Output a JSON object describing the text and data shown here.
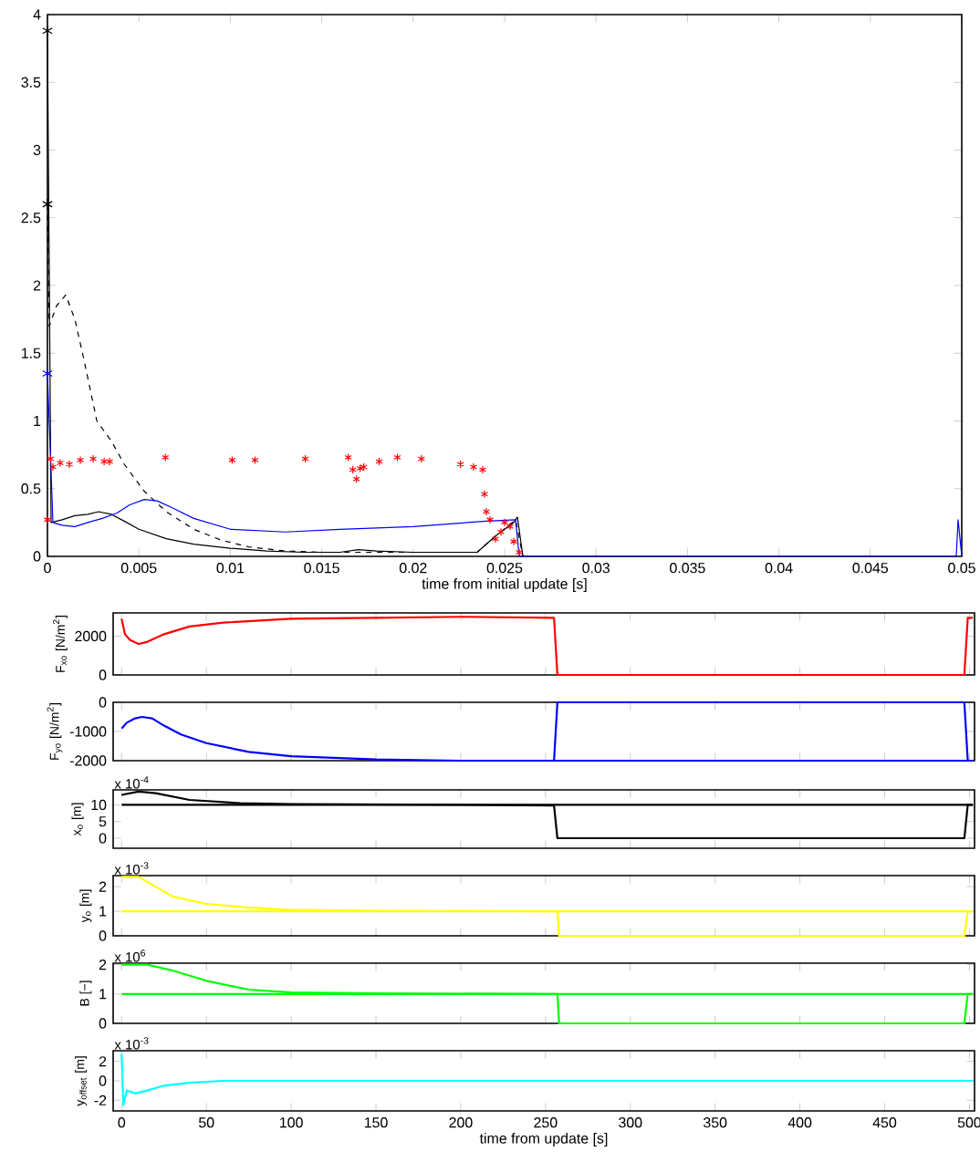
{
  "chart_data": [
    {
      "type": "line",
      "xlabel": "time from initial update [s]",
      "xlim": [
        0,
        0.05
      ],
      "xticks": [
        0,
        0.005,
        0.01,
        0.015,
        0.02,
        0.025,
        0.03,
        0.035,
        0.04,
        0.045,
        0.05
      ],
      "ylim": [
        0,
        4
      ],
      "yticks": [
        0,
        0.5,
        1,
        1.5,
        2,
        2.5,
        3,
        3.5,
        4
      ],
      "series": [
        {
          "color": "#000000",
          "line_style": "dashed",
          "x": [
            0,
            0.0001,
            0.0005,
            0.001,
            0.0015,
            0.002,
            0.0027,
            0.0035,
            0.0042,
            0.0053,
            0.0065,
            0.008,
            0.0095,
            0.011,
            0.013,
            0.015,
            0.018,
            0.021,
            0.0235,
            0.0245,
            0.0256,
            0.026
          ],
          "values": [
            2.6,
            1.7,
            1.85,
            1.93,
            1.75,
            1.45,
            1.0,
            0.85,
            0.68,
            0.48,
            0.33,
            0.2,
            0.12,
            0.07,
            0.04,
            0.03,
            0.03,
            0.03,
            0.03,
            0.15,
            0.27,
            0
          ]
        },
        {
          "color": "#000000",
          "line_style": "solid",
          "x": [
            0,
            0.0002,
            0.0008,
            0.0015,
            0.0022,
            0.0028,
            0.0035,
            0.0042,
            0.005,
            0.0065,
            0.008,
            0.01,
            0.012,
            0.014,
            0.016,
            0.017,
            0.018,
            0.02,
            0.022,
            0.0235,
            0.0245,
            0.0255,
            0.0257,
            0.026
          ],
          "values": [
            3.88,
            0.25,
            0.27,
            0.3,
            0.31,
            0.33,
            0.31,
            0.26,
            0.2,
            0.13,
            0.09,
            0.06,
            0.04,
            0.03,
            0.03,
            0.05,
            0.04,
            0.03,
            0.03,
            0.03,
            0.15,
            0.25,
            0.29,
            0
          ]
        },
        {
          "color": "#0000ff",
          "line_style": "solid",
          "x": [
            0,
            0.0003,
            0.0008,
            0.0015,
            0.0022,
            0.003,
            0.0038,
            0.0045,
            0.0053,
            0.006,
            0.0068,
            0.008,
            0.01,
            0.013,
            0.016,
            0.02,
            0.024,
            0.0256,
            0.0258,
            0.0497,
            0.0498,
            0.05
          ],
          "values": [
            1.35,
            0.25,
            0.23,
            0.22,
            0.25,
            0.28,
            0.32,
            0.38,
            0.42,
            0.41,
            0.36,
            0.28,
            0.2,
            0.18,
            0.2,
            0.22,
            0.26,
            0.27,
            0,
            0,
            0.27,
            0
          ]
        },
        {
          "type": "scatter",
          "color": "#ff0000",
          "marker": "cross",
          "x": [
            0,
            0.00017,
            0.0003,
            0.0007,
            0.0012,
            0.0018,
            0.0025,
            0.0031,
            0.0034,
            0.00645,
            0.0101,
            0.01135,
            0.0141,
            0.01645,
            0.0167,
            0.0169,
            0.0171,
            0.0173,
            0.01814,
            0.01914,
            0.02045,
            0.02259,
            0.0233,
            0.0238,
            0.0239,
            0.024,
            0.0242,
            0.0245,
            0.0248,
            0.025,
            0.0253,
            0.0255,
            0.0258
          ],
          "values": [
            0.27,
            0.72,
            0.66,
            0.69,
            0.68,
            0.71,
            0.72,
            0.7,
            0.7,
            0.73,
            0.71,
            0.71,
            0.72,
            0.73,
            0.64,
            0.57,
            0.65,
            0.66,
            0.7,
            0.73,
            0.72,
            0.68,
            0.66,
            0.64,
            0.46,
            0.33,
            0.27,
            0.13,
            0.18,
            0.25,
            0.22,
            0.11,
            0.03
          ]
        },
        {
          "type": "scatter",
          "color": "#000000",
          "marker": "cross",
          "x": [
            0
          ],
          "values": [
            3.88
          ]
        },
        {
          "type": "scatter",
          "color": "#000000",
          "marker": "cross",
          "x": [
            0
          ],
          "values": [
            2.6
          ]
        },
        {
          "type": "scatter",
          "color": "#0000ff",
          "marker": "cross",
          "x": [
            0
          ],
          "values": [
            1.35
          ]
        }
      ]
    },
    {
      "type": "line",
      "ylabel": "F$_{xo}$ [N/m$^{2}$]",
      "tick_labels": "y",
      "xlim": [
        -5,
        503
      ],
      "xticks": [
        0,
        50,
        100,
        150,
        200,
        250,
        300,
        350,
        400,
        450,
        500
      ],
      "ylim": [
        0,
        3200
      ],
      "yticks": [
        0,
        2000
      ],
      "series": [
        {
          "color": "#ff0000",
          "x": [
            0,
            2,
            5,
            10,
            15,
            25,
            40,
            60,
            80,
            100,
            150,
            200,
            255,
            257,
            497,
            499,
            502
          ],
          "values": [
            2900,
            2100,
            1800,
            1600,
            1700,
            2100,
            2500,
            2700,
            2800,
            2900,
            2950,
            3000,
            2950,
            0,
            0,
            2950,
            2950
          ]
        }
      ]
    },
    {
      "type": "line",
      "ylabel": "F$_{yo}$ [N/m$^{2}$]",
      "tick_labels": "y",
      "xlim": [
        -5,
        503
      ],
      "xticks": [
        0,
        50,
        100,
        150,
        200,
        250,
        300,
        350,
        400,
        450,
        500
      ],
      "ylim": [
        -2000,
        0
      ],
      "yticks": [
        -2000,
        -1000,
        0
      ],
      "series": [
        {
          "color": "#0000ff",
          "x": [
            0,
            3,
            8,
            12,
            18,
            25,
            35,
            50,
            75,
            100,
            150,
            200,
            255,
            257,
            497,
            499,
            502
          ],
          "values": [
            -900,
            -700,
            -550,
            -500,
            -550,
            -800,
            -1100,
            -1400,
            -1700,
            -1850,
            -1960,
            -2000,
            -2000,
            0,
            0,
            -2000,
            -2000
          ]
        },
        {
          "color": "#0000ff",
          "x": [
            255,
            502
          ],
          "values": [
            -2000,
            -2000
          ]
        }
      ]
    },
    {
      "type": "line",
      "ylabel": "x$_{o}$ [m]",
      "tick_labels": "y",
      "annotations": [
        "x 10$^{-4}$"
      ],
      "xlim": [
        -5,
        503
      ],
      "xticks": [
        0,
        50,
        100,
        150,
        200,
        250,
        300,
        350,
        400,
        450,
        500
      ],
      "ylim": [
        -3,
        14.5
      ],
      "yticks": [
        0,
        5,
        10
      ],
      "series": [
        {
          "color": "#000000",
          "x": [
            0,
            10,
            20,
            40,
            70,
            100,
            200,
            255,
            257,
            497,
            499,
            502
          ],
          "values": [
            13,
            14,
            13.5,
            11.5,
            10.5,
            10.2,
            10,
            9.8,
            0,
            0,
            10,
            10
          ]
        },
        {
          "color": "#000000",
          "x": [
            0,
            502
          ],
          "values": [
            10,
            10
          ]
        }
      ]
    },
    {
      "type": "line",
      "ylabel": "y$_{o}$ [m]",
      "tick_labels": "y",
      "annotations": [
        "x 10$^{-3}$"
      ],
      "xlim": [
        -5,
        503
      ],
      "xticks": [
        0,
        50,
        100,
        150,
        200,
        250,
        300,
        350,
        400,
        450,
        500
      ],
      "ylim": [
        0,
        2.45
      ],
      "yticks": [
        0,
        1,
        2
      ],
      "series": [
        {
          "color": "#ffff00",
          "x": [
            0,
            10,
            20,
            30,
            50,
            75,
            100,
            150,
            257,
            258,
            497,
            499,
            502
          ],
          "values": [
            2.4,
            2.4,
            2.0,
            1.6,
            1.3,
            1.15,
            1.05,
            1.02,
            1.0,
            0,
            0,
            1,
            1
          ]
        },
        {
          "color": "#ffff00",
          "x": [
            0,
            502
          ],
          "values": [
            1,
            1
          ]
        }
      ]
    },
    {
      "type": "line",
      "ylabel": "B [−]",
      "tick_labels": "y",
      "annotations": [
        "x 10$^{6}$"
      ],
      "xlim": [
        -5,
        503
      ],
      "xticks": [
        0,
        50,
        100,
        150,
        200,
        250,
        300,
        350,
        400,
        450,
        500
      ],
      "ylim": [
        0,
        2.05
      ],
      "yticks": [
        0,
        1,
        2
      ],
      "series": [
        {
          "color": "#00ff00",
          "x": [
            0,
            15,
            30,
            50,
            75,
            100,
            150,
            257,
            258,
            497,
            499,
            502
          ],
          "values": [
            2,
            2,
            1.8,
            1.45,
            1.15,
            1.05,
            1.02,
            1.0,
            0,
            0,
            1,
            1
          ]
        },
        {
          "color": "#00ff00",
          "x": [
            0,
            502
          ],
          "values": [
            1,
            1
          ]
        }
      ]
    },
    {
      "type": "line",
      "xlabel": "time from update [s]",
      "ylabel": "y$_{offset}$ [m]",
      "annotations": [
        "x 10$^{-3}$"
      ],
      "xlim": [
        -5,
        503
      ],
      "xticks": [
        0,
        50,
        100,
        150,
        200,
        250,
        300,
        350,
        400,
        450,
        500
      ],
      "ylim": [
        -3.1,
        3.1
      ],
      "yticks": [
        -2,
        0,
        2
      ],
      "series": [
        {
          "color": "#00ffff",
          "x": [
            0,
            1,
            3,
            8,
            15,
            25,
            40,
            60,
            502
          ],
          "values": [
            2.8,
            -2.5,
            -1.0,
            -1.3,
            -1.0,
            -0.5,
            -0.2,
            0,
            0
          ]
        }
      ]
    }
  ]
}
